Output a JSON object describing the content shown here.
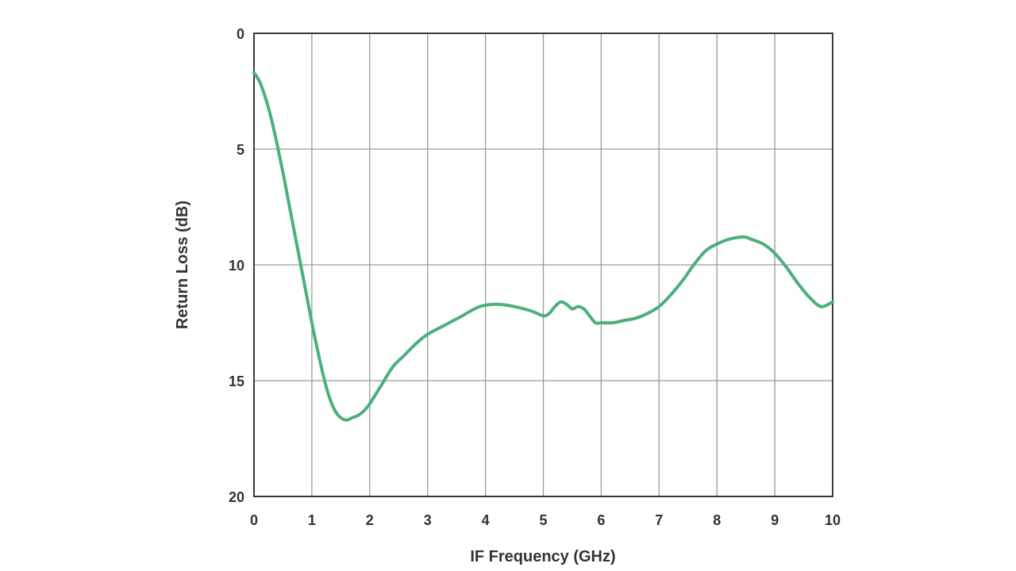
{
  "chart_data": {
    "type": "line",
    "title": "",
    "xlabel": "IF Frequency (GHz)",
    "ylabel": "Return Loss (dB)",
    "xlim": [
      0,
      10
    ],
    "ylim": [
      0,
      20
    ],
    "y_inverted": true,
    "grid": true,
    "x_ticks": [
      "0",
      "1",
      "2",
      "3",
      "4",
      "5",
      "6",
      "7",
      "8",
      "9",
      "10"
    ],
    "y_ticks": [
      "0",
      "5",
      "10",
      "15",
      "20"
    ],
    "line_color": "#4daf7c",
    "series": [
      {
        "x": [
          0,
          0.1,
          0.2,
          0.3,
          0.4,
          0.5,
          0.6,
          0.7,
          0.8,
          0.9,
          1.0,
          1.1,
          1.2,
          1.3,
          1.4,
          1.5,
          1.6,
          1.7,
          1.8,
          1.9,
          2.0,
          2.2,
          2.4,
          2.6,
          2.8,
          3.0,
          3.3,
          3.6,
          3.9,
          4.2,
          4.5,
          4.8,
          5.0,
          5.1,
          5.2,
          5.3,
          5.4,
          5.5,
          5.6,
          5.7,
          5.8,
          5.9,
          6.0,
          6.2,
          6.4,
          6.6,
          6.8,
          7.0,
          7.2,
          7.4,
          7.6,
          7.8,
          8.0,
          8.2,
          8.4,
          8.5,
          8.6,
          8.8,
          9.0,
          9.2,
          9.4,
          9.6,
          9.8,
          10.0
        ],
        "values": [
          1.7,
          2.1,
          2.8,
          3.7,
          4.8,
          6.0,
          7.3,
          8.6,
          9.9,
          11.2,
          12.5,
          13.7,
          14.8,
          15.7,
          16.3,
          16.6,
          16.7,
          16.6,
          16.5,
          16.3,
          16.0,
          15.2,
          14.4,
          13.9,
          13.4,
          13.0,
          12.6,
          12.2,
          11.8,
          11.7,
          11.8,
          12.0,
          12.2,
          12.1,
          11.8,
          11.6,
          11.7,
          11.9,
          11.8,
          11.9,
          12.2,
          12.5,
          12.5,
          12.5,
          12.4,
          12.3,
          12.1,
          11.8,
          11.3,
          10.7,
          10.0,
          9.4,
          9.1,
          8.9,
          8.8,
          8.8,
          8.9,
          9.1,
          9.5,
          10.1,
          10.8,
          11.4,
          11.8,
          11.6
        ]
      }
    ]
  }
}
